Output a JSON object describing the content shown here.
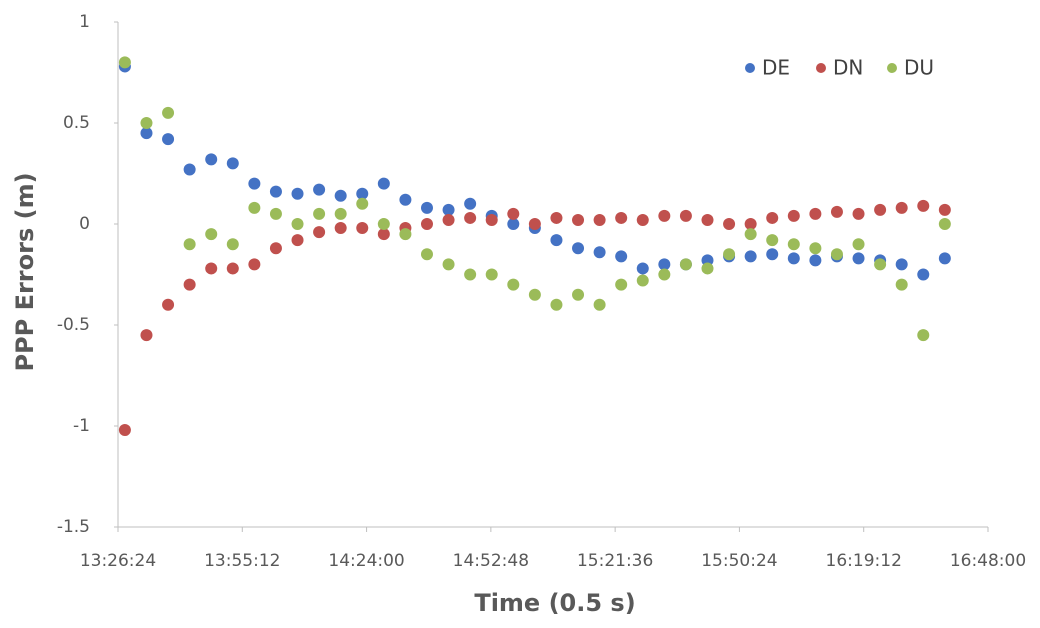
{
  "chart_data": {
    "type": "scatter",
    "x_label": "Time (0.5 s)",
    "y_label": "PPP Errors (m)",
    "x": [
      "13:28:00",
      "13:33:00",
      "13:38:00",
      "13:43:00",
      "13:48:00",
      "13:53:00",
      "13:58:00",
      "14:03:00",
      "14:08:00",
      "14:13:00",
      "14:18:00",
      "14:23:00",
      "14:28:00",
      "14:33:00",
      "14:38:00",
      "14:43:00",
      "14:48:00",
      "14:53:00",
      "14:58:00",
      "15:03:00",
      "15:08:00",
      "15:13:00",
      "15:18:00",
      "15:23:00",
      "15:28:00",
      "15:33:00",
      "15:38:00",
      "15:43:00",
      "15:48:00",
      "15:53:00",
      "15:58:00",
      "16:03:00",
      "16:08:00",
      "16:13:00",
      "16:18:00",
      "16:23:00",
      "16:28:00",
      "16:33:00",
      "16:38:00"
    ],
    "series": [
      {
        "name": "DE",
        "color": "#4472c4",
        "values": [
          0.78,
          0.45,
          0.42,
          0.27,
          0.32,
          0.3,
          0.2,
          0.16,
          0.15,
          0.17,
          0.14,
          0.15,
          0.2,
          0.12,
          0.08,
          0.07,
          0.1,
          0.04,
          0.0,
          -0.02,
          -0.08,
          -0.12,
          -0.14,
          -0.16,
          -0.22,
          -0.2,
          -0.2,
          -0.18,
          -0.16,
          -0.16,
          -0.15,
          -0.17,
          -0.18,
          -0.16,
          -0.17,
          -0.18,
          -0.2,
          -0.25,
          -0.17
        ]
      },
      {
        "name": "DN",
        "color": "#c0504d",
        "values": [
          -1.02,
          -0.55,
          -0.4,
          -0.3,
          -0.22,
          -0.22,
          -0.2,
          -0.12,
          -0.08,
          -0.04,
          -0.02,
          -0.02,
          -0.05,
          -0.02,
          0.0,
          0.02,
          0.03,
          0.02,
          0.05,
          0.0,
          0.03,
          0.02,
          0.02,
          0.03,
          0.02,
          0.04,
          0.04,
          0.02,
          0.0,
          0.0,
          0.03,
          0.04,
          0.05,
          0.06,
          0.05,
          0.07,
          0.08,
          0.09,
          0.07
        ]
      },
      {
        "name": "DU",
        "color": "#9bbb59",
        "values": [
          0.8,
          0.5,
          0.55,
          -0.1,
          -0.05,
          -0.1,
          0.08,
          0.05,
          0.0,
          0.05,
          0.05,
          0.1,
          0.0,
          -0.05,
          -0.15,
          -0.2,
          -0.25,
          -0.25,
          -0.3,
          -0.35,
          -0.4,
          -0.35,
          -0.4,
          -0.3,
          -0.28,
          -0.25,
          -0.2,
          -0.22,
          -0.15,
          -0.05,
          -0.08,
          -0.1,
          -0.12,
          -0.15,
          -0.1,
          -0.2,
          -0.3,
          -0.55,
          0.0
        ]
      }
    ],
    "xlim": [
      "13:26:24",
      "16:48:00"
    ],
    "xticks": [
      "13:26:24",
      "13:55:12",
      "14:24:00",
      "14:52:48",
      "15:21:36",
      "15:50:24",
      "16:19:12",
      "16:48:00"
    ],
    "ylim": [
      -1.5,
      1
    ],
    "yticks": [
      -1.5,
      -1,
      -0.5,
      0,
      0.5,
      1
    ],
    "grid": false,
    "legend": "upper right"
  }
}
